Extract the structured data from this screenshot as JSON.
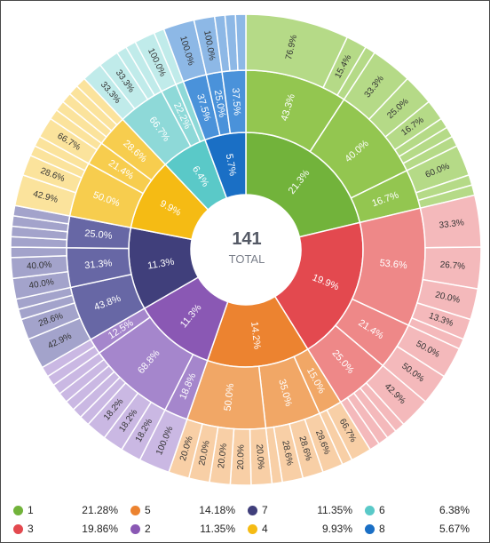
{
  "center": {
    "total": "141",
    "label": "TOTAL"
  },
  "colors": {
    "1": [
      "#72b33b",
      "#93c650",
      "#b5da87"
    ],
    "3": [
      "#e3494f",
      "#ee8888",
      "#f4b9bb"
    ],
    "5": [
      "#ec8330",
      "#f1a766",
      "#f8cfa6"
    ],
    "2": [
      "#8a58b4",
      "#a586cc",
      "#cab8e3"
    ],
    "4": [
      "#f5bb14",
      "#f7cd4e",
      "#fbe39c"
    ],
    "7": [
      "#403f7b",
      "#6767a5",
      "#a3a3cb"
    ],
    "6": [
      "#5ac9c8",
      "#8ed9d8",
      "#c0ebea"
    ],
    "8": [
      "#1a6fc5",
      "#4a92da",
      "#8db8e6"
    ]
  },
  "chart_data": {
    "type": "sunburst",
    "total": 141,
    "center_label": "TOTAL",
    "segments": [
      {
        "name": "1",
        "value": 30,
        "label": "21.3%",
        "legend_pct": "21.28%",
        "children": [
          {
            "value": 13,
            "label": "43.3%",
            "children": [
              {
                "value": 10,
                "label": "76.9%"
              },
              {
                "value": 2,
                "label": "15.4%"
              },
              {
                "value": 1,
                "label": ""
              }
            ]
          },
          {
            "value": 12,
            "label": "40.0%",
            "children": [
              {
                "value": 4,
                "label": "33.3%"
              },
              {
                "value": 3,
                "label": "25.0%"
              },
              {
                "value": 2,
                "label": "16.7%"
              },
              {
                "value": 1,
                "label": ""
              },
              {
                "value": 1,
                "label": ""
              },
              {
                "value": 1,
                "label": ""
              }
            ]
          },
          {
            "value": 5,
            "label": "16.7%",
            "children": [
              {
                "value": 3,
                "label": "60.0%"
              },
              {
                "value": 1,
                "label": ""
              },
              {
                "value": 1,
                "label": ""
              }
            ]
          }
        ]
      },
      {
        "name": "3",
        "value": 28,
        "label": "19.9%",
        "legend_pct": "19.86%",
        "children": [
          {
            "value": 15,
            "label": "53.6%",
            "children": [
              {
                "value": 5,
                "label": "33.3%"
              },
              {
                "value": 4,
                "label": "26.7%"
              },
              {
                "value": 3,
                "label": "20.0%"
              },
              {
                "value": 2,
                "label": "13.3%"
              },
              {
                "value": 1,
                "label": ""
              }
            ]
          },
          {
            "value": 6,
            "label": "21.4%",
            "children": [
              {
                "value": 3,
                "label": "50.0%"
              },
              {
                "value": 3,
                "label": "50.0%"
              }
            ]
          },
          {
            "value": 7,
            "label": "25.0%",
            "children": [
              {
                "value": 3,
                "label": "42.9%"
              },
              {
                "value": 1,
                "label": ""
              },
              {
                "value": 1,
                "label": ""
              },
              {
                "value": 1,
                "label": ""
              },
              {
                "value": 1,
                "label": ""
              }
            ]
          }
        ]
      },
      {
        "name": "5",
        "value": 20,
        "label": "14.2%",
        "legend_pct": "14.18%",
        "children": [
          {
            "value": 3,
            "label": "15.0%",
            "children": [
              {
                "value": 2,
                "label": "66.7%"
              },
              {
                "value": 1,
                "label": ""
              }
            ]
          },
          {
            "value": 7,
            "label": "35.0%",
            "children": [
              {
                "value": 2,
                "label": "28.6%"
              },
              {
                "value": 2,
                "label": "28.6%"
              },
              {
                "value": 2,
                "label": "28.6%"
              },
              {
                "value": 1,
                "label": ""
              }
            ]
          },
          {
            "value": 10,
            "label": "50.0%",
            "children": [
              {
                "value": 2,
                "label": "20.0%"
              },
              {
                "value": 2,
                "label": "20.0%"
              },
              {
                "value": 2,
                "label": "20.0%"
              },
              {
                "value": 2,
                "label": "20.0%"
              },
              {
                "value": 2,
                "label": "20.0%"
              }
            ]
          }
        ]
      },
      {
        "name": "2",
        "value": 16,
        "label": "11.3%",
        "legend_pct": "11.35%",
        "children": [
          {
            "value": 3,
            "label": "18.8%",
            "children": [
              {
                "value": 3,
                "label": "100.0%"
              }
            ]
          },
          {
            "value": 11,
            "label": "68.8%",
            "children": [
              {
                "value": 2,
                "label": "18.2%"
              },
              {
                "value": 2,
                "label": "18.2%"
              },
              {
                "value": 2,
                "label": "18.2%"
              },
              {
                "value": 1,
                "label": ""
              },
              {
                "value": 1,
                "label": ""
              },
              {
                "value": 1,
                "label": ""
              },
              {
                "value": 1,
                "label": ""
              },
              {
                "value": 1,
                "label": ""
              }
            ]
          },
          {
            "value": 2,
            "label": "12.5%",
            "children": [
              {
                "value": 1,
                "label": ""
              },
              {
                "value": 1,
                "label": ""
              }
            ]
          }
        ]
      },
      {
        "name": "7",
        "value": 16,
        "label": "11.3%",
        "legend_pct": "11.35%",
        "children": [
          {
            "value": 7,
            "label": "43.8%",
            "children": [
              {
                "value": 3,
                "label": "42.9%"
              },
              {
                "value": 2,
                "label": "28.6%"
              },
              {
                "value": 1,
                "label": ""
              },
              {
                "value": 1,
                "label": ""
              }
            ]
          },
          {
            "value": 5,
            "label": "31.3%",
            "children": [
              {
                "value": 2,
                "label": "40.0%"
              },
              {
                "value": 2,
                "label": "40.0%"
              },
              {
                "value": 1,
                "label": ""
              }
            ]
          },
          {
            "value": 4,
            "label": "25.0%",
            "children": [
              {
                "value": 1,
                "label": ""
              },
              {
                "value": 1,
                "label": ""
              },
              {
                "value": 1,
                "label": ""
              },
              {
                "value": 1,
                "label": ""
              }
            ]
          }
        ]
      },
      {
        "name": "4",
        "value": 14,
        "label": "9.9%",
        "legend_pct": "9.93%",
        "children": [
          {
            "value": 7,
            "label": "50.0%",
            "children": [
              {
                "value": 3,
                "label": "42.9%"
              },
              {
                "value": 2,
                "label": "28.6%"
              },
              {
                "value": 1,
                "label": ""
              },
              {
                "value": 1,
                "label": ""
              }
            ]
          },
          {
            "value": 3,
            "label": "21.4%",
            "children": [
              {
                "value": 2,
                "label": "66.7%"
              },
              {
                "value": 1,
                "label": ""
              }
            ]
          },
          {
            "value": 4,
            "label": "28.6%",
            "children": [
              {
                "value": 1,
                "label": ""
              },
              {
                "value": 1,
                "label": ""
              },
              {
                "value": 1,
                "label": ""
              },
              {
                "value": 1,
                "label": ""
              }
            ]
          }
        ]
      },
      {
        "name": "6",
        "value": 9,
        "label": "6.4%",
        "legend_pct": "6.38%",
        "children": [
          {
            "value": 6,
            "label": "66.7%",
            "children": [
              {
                "value": 2,
                "label": "33.3%"
              },
              {
                "value": 2,
                "label": "33.3%"
              },
              {
                "value": 1,
                "label": ""
              },
              {
                "value": 1,
                "label": ""
              }
            ]
          },
          {
            "value": 2,
            "label": "22.2%",
            "children": [
              {
                "value": 2,
                "label": "100.0%"
              }
            ]
          },
          {
            "value": 1,
            "label": "",
            "children": [
              {
                "value": 1,
                "label": ""
              }
            ]
          }
        ]
      },
      {
        "name": "8",
        "value": 8,
        "label": "5.7%",
        "legend_pct": "5.67%",
        "children": [
          {
            "value": 3,
            "label": "37.5%",
            "children": [
              {
                "value": 3,
                "label": "100.0%"
              }
            ]
          },
          {
            "value": 2,
            "label": "25.0%",
            "children": [
              {
                "value": 2,
                "label": "100.0%"
              }
            ]
          },
          {
            "value": 3,
            "label": "37.5%",
            "children": [
              {
                "value": 1,
                "label": ""
              },
              {
                "value": 1,
                "label": ""
              },
              {
                "value": 1,
                "label": ""
              }
            ]
          }
        ]
      }
    ],
    "legend": [
      {
        "name": "1",
        "pct": "21.28%"
      },
      {
        "name": "5",
        "pct": "14.18%"
      },
      {
        "name": "7",
        "pct": "11.35%"
      },
      {
        "name": "6",
        "pct": "6.38%"
      },
      {
        "name": "3",
        "pct": "19.86%"
      },
      {
        "name": "2",
        "pct": "11.35%"
      },
      {
        "name": "4",
        "pct": "9.93%"
      },
      {
        "name": "8",
        "pct": "5.67%"
      }
    ]
  }
}
